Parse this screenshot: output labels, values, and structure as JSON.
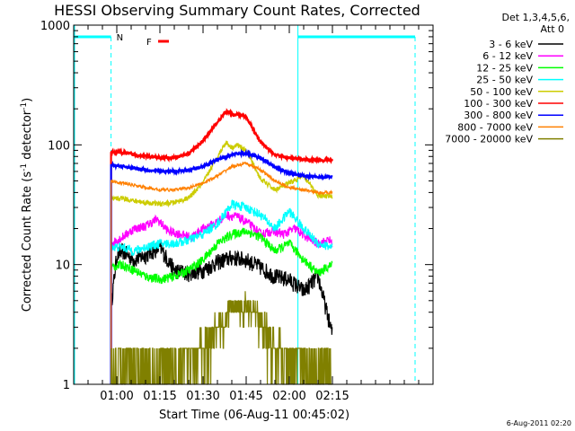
{
  "chart_data": {
    "type": "line",
    "title": "HESSI Observing Summary Count Rates, Corrected",
    "xlabel": "Start Time (06-Aug-11 00:45:02)",
    "ylabel_main": "Corrected Count Rate (s",
    "ylabel_sup1": "-1",
    "ylabel_mid": " detector",
    "ylabel_sup2": "-1",
    "ylabel_end": ")",
    "y_scale": "log",
    "ylim": [
      1,
      1000
    ],
    "xlim_minutes": [
      45,
      170
    ],
    "x_ticks": [
      {
        "label": "01:00",
        "minute": 60
      },
      {
        "label": "01:15",
        "minute": 75
      },
      {
        "label": "01:30",
        "minute": 90
      },
      {
        "label": "01:45",
        "minute": 105
      },
      {
        "label": "02:00",
        "minute": 120
      },
      {
        "label": "02:15",
        "minute": 135
      }
    ],
    "y_ticks": [
      {
        "label": "1",
        "value": 1
      },
      {
        "label": "10",
        "value": 10
      },
      {
        "label": "100",
        "value": 100
      },
      {
        "label": "1000",
        "value": 1000
      }
    ],
    "legend_header": [
      "Det 1,3,4,5,6,",
      "Att 0"
    ],
    "legend_position": "right",
    "annotations": {
      "night_label": "N",
      "flare_label": "F",
      "night_color": "#00ffff",
      "flare_color": "#ff0000"
    },
    "series": [
      {
        "name": "3 - 6 keV",
        "color": "#000000",
        "x": [
          58,
          60,
          62,
          66,
          70,
          75,
          80,
          85,
          90,
          95,
          100,
          105,
          110,
          115,
          120,
          125,
          130,
          135
        ],
        "y": [
          4.5,
          12,
          13,
          11,
          12,
          14,
          9,
          8.5,
          9,
          10.5,
          11.5,
          11,
          9.5,
          8,
          7.5,
          6,
          8,
          2.6
        ]
      },
      {
        "name": "6 - 12 keV",
        "color": "#ff00ff",
        "x": [
          58,
          62,
          66,
          70,
          74,
          78,
          82,
          86,
          90,
          94,
          98,
          102,
          106,
          110,
          114,
          118,
          122,
          126,
          130,
          134,
          135
        ],
        "y": [
          15,
          17,
          20,
          21,
          24,
          19,
          18,
          17,
          20,
          22,
          26,
          25,
          22,
          18,
          19,
          18,
          20,
          17,
          15,
          16,
          15
        ]
      },
      {
        "name": "12 - 25 keV",
        "color": "#00ff00",
        "x": [
          58,
          62,
          66,
          70,
          75,
          80,
          85,
          90,
          95,
          100,
          105,
          110,
          115,
          120,
          125,
          130,
          135
        ],
        "y": [
          9.5,
          10,
          9,
          8,
          7.5,
          8,
          9,
          11,
          15,
          18,
          19,
          17,
          13,
          15,
          11,
          8.5,
          10
        ]
      },
      {
        "name": "25 - 50 keV",
        "color": "#00ffff",
        "x": [
          58,
          62,
          66,
          70,
          75,
          80,
          85,
          90,
          95,
          100,
          105,
          110,
          115,
          120,
          125,
          130,
          135
        ],
        "y": [
          14,
          14,
          13,
          14,
          15,
          15,
          16,
          18,
          22,
          32,
          30,
          26,
          20,
          28,
          20,
          15,
          14
        ]
      },
      {
        "name": "50 - 100 keV",
        "color": "#cccc00",
        "x": [
          58,
          62,
          66,
          70,
          75,
          80,
          85,
          90,
          95,
          98,
          100,
          102,
          105,
          110,
          115,
          120,
          125,
          130,
          135
        ],
        "y": [
          35,
          36,
          34,
          33,
          32,
          33,
          36,
          48,
          80,
          105,
          95,
          100,
          90,
          52,
          42,
          48,
          55,
          38,
          37
        ]
      },
      {
        "name": "100 - 300 keV",
        "color": "#ff0000",
        "x": [
          58,
          62,
          66,
          70,
          75,
          80,
          85,
          90,
          95,
          98,
          100,
          103,
          105,
          110,
          115,
          120,
          125,
          130,
          135
        ],
        "y": [
          88,
          86,
          83,
          80,
          78,
          78,
          85,
          108,
          155,
          190,
          180,
          178,
          170,
          105,
          82,
          78,
          75,
          75,
          75
        ]
      },
      {
        "name": "300 - 800 keV",
        "color": "#0000ff",
        "x": [
          58,
          62,
          66,
          70,
          75,
          80,
          85,
          90,
          95,
          100,
          105,
          110,
          115,
          120,
          125,
          130,
          135
        ],
        "y": [
          68,
          66,
          64,
          62,
          60,
          60,
          62,
          66,
          75,
          83,
          85,
          78,
          65,
          58,
          55,
          54,
          54
        ]
      },
      {
        "name": "800 - 7000 keV",
        "color": "#ff8000",
        "x": [
          58,
          62,
          66,
          70,
          75,
          80,
          85,
          90,
          95,
          100,
          105,
          110,
          115,
          120,
          125,
          130,
          135
        ],
        "y": [
          50,
          48,
          46,
          44,
          42,
          42,
          44,
          48,
          55,
          66,
          70,
          62,
          50,
          44,
          42,
          40,
          40
        ]
      },
      {
        "name": "7000 - 20000 keV",
        "color": "#808000",
        "x": [
          58,
          62,
          66,
          70,
          75,
          80,
          85,
          90,
          95,
          100,
          105,
          110,
          115,
          120,
          125,
          130,
          135
        ],
        "y": [
          1.5,
          1.6,
          1.5,
          1.5,
          1.5,
          1.6,
          1.8,
          2.3,
          3.2,
          4.5,
          4.8,
          3.6,
          2.5,
          1.8,
          1.6,
          1.5,
          1.5
        ]
      }
    ]
  },
  "footer_date": "6-Aug-2011 02:20"
}
